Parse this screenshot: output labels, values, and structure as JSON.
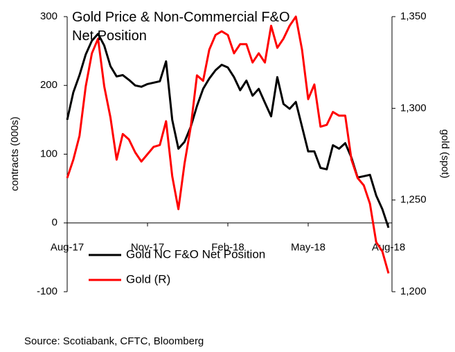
{
  "chart_data": {
    "type": "line",
    "title": "Gold Price & Non-Commercial F&O Net Position",
    "y_label": "contracts (000s)",
    "y2_label": "gold (spot)",
    "source": "Source: Scotiabank, CFTC, Bloomberg",
    "categories": [
      "Aug-17",
      null,
      null,
      null,
      null,
      null,
      null,
      null,
      null,
      null,
      null,
      null,
      null,
      "Nov-17",
      null,
      null,
      null,
      null,
      null,
      null,
      null,
      null,
      null,
      null,
      null,
      null,
      "Feb-18",
      null,
      null,
      null,
      null,
      null,
      null,
      null,
      null,
      null,
      null,
      null,
      null,
      "May-18",
      null,
      null,
      null,
      null,
      null,
      null,
      null,
      null,
      null,
      null,
      null,
      null,
      "Aug-18"
    ],
    "series": [
      {
        "name": "Gold NC F&O Net Position",
        "color": "#000000",
        "axis": "y",
        "values": [
          150,
          190,
          215,
          245,
          265,
          275,
          258,
          228,
          213,
          215,
          208,
          200,
          198,
          202,
          204,
          206,
          235,
          150,
          108,
          118,
          140,
          170,
          195,
          210,
          222,
          230,
          226,
          212,
          193,
          207,
          185,
          195,
          175,
          155,
          212,
          173,
          166,
          176,
          140,
          104,
          104,
          80,
          78,
          113,
          108,
          116,
          95,
          66,
          68,
          70,
          40,
          20,
          -7
        ]
      },
      {
        "name": "Gold (R)",
        "color": "#ff0000",
        "axis": "y2",
        "values": [
          1262,
          1272,
          1285,
          1312,
          1330,
          1338,
          1312,
          1295,
          1272,
          1286,
          1283,
          1276,
          1271,
          1275,
          1279,
          1280,
          1293,
          1263,
          1245,
          1270,
          1290,
          1318,
          1315,
          1332,
          1340,
          1342,
          1340,
          1330,
          1335,
          1335,
          1325,
          1330,
          1325,
          1345,
          1333,
          1338,
          1345,
          1350,
          1332,
          1305,
          1313,
          1290,
          1291,
          1298,
          1296,
          1296,
          1272,
          1262,
          1258,
          1248,
          1227,
          1222,
          1210
        ]
      }
    ],
    "ylim": [
      -100,
      300
    ],
    "yticks": [
      -100,
      0,
      100,
      200,
      300
    ],
    "y2lim": [
      1200,
      1350
    ],
    "y2ticks": [
      {
        "value": 1200,
        "label": "1,200"
      },
      {
        "value": 1250,
        "label": "1,250"
      },
      {
        "value": 1300,
        "label": "1,300"
      },
      {
        "value": 1350,
        "label": "1,350"
      }
    ]
  }
}
